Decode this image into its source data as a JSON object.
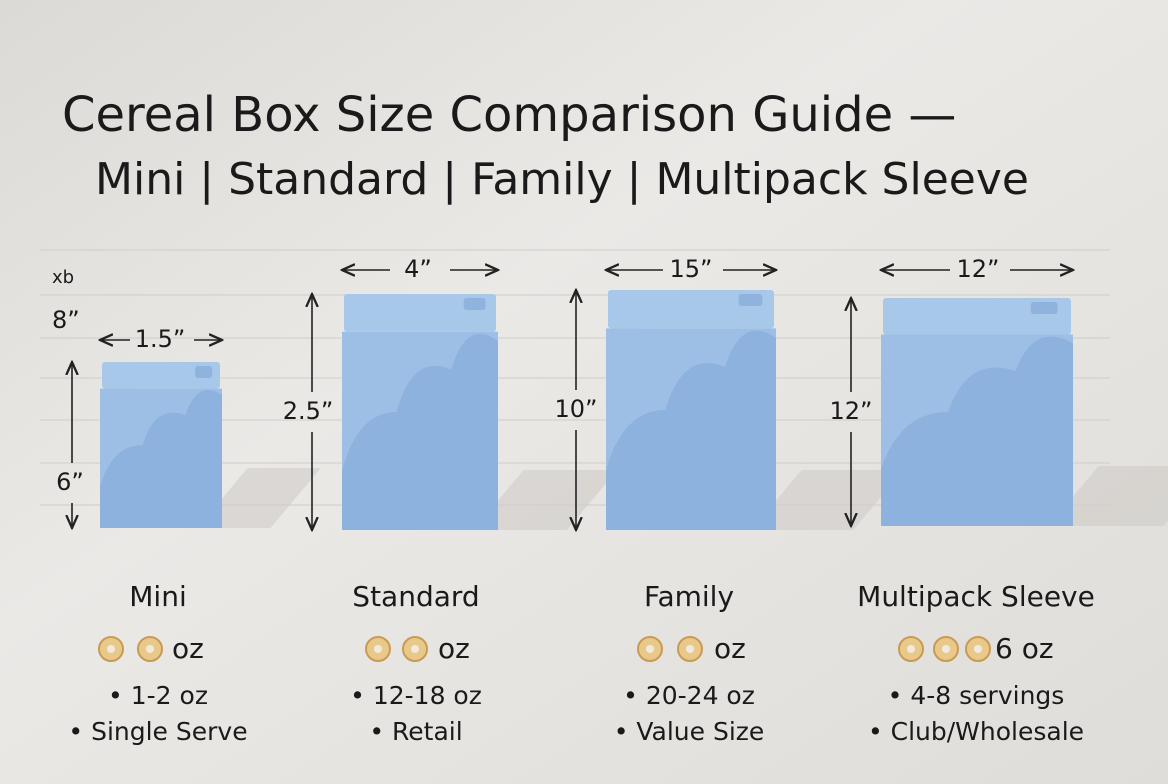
{
  "header": {
    "title": "Cereal Box Size Comparison Guide —",
    "subtitle": "Mini | Standard | Family | Multipack Sleeve"
  },
  "ruler": {
    "unit_label": "xb",
    "mark_label": "8”"
  },
  "boxes": [
    {
      "name": "Mini",
      "width_label": "1.5”",
      "height_label": "6”",
      "weight_label": "oz",
      "details": [
        "• 1-2 oz",
        "• Single Serve"
      ]
    },
    {
      "name": "Standard",
      "width_label": "4”",
      "height_label": "2.5”",
      "weight_label": "oz",
      "details": [
        "• 12-18 oz",
        "• Retail"
      ]
    },
    {
      "name": "Family",
      "width_label": "15”",
      "height_label": "10”",
      "weight_label": "oz",
      "details": [
        "• 20-24 oz",
        "• Value Size"
      ]
    },
    {
      "name": "Multipack Sleeve",
      "width_label": "12”",
      "height_label": "12”",
      "weight_label": "6 oz",
      "details": [
        "• 4-8 servings",
        "• Club/Wholesale"
      ]
    }
  ]
}
